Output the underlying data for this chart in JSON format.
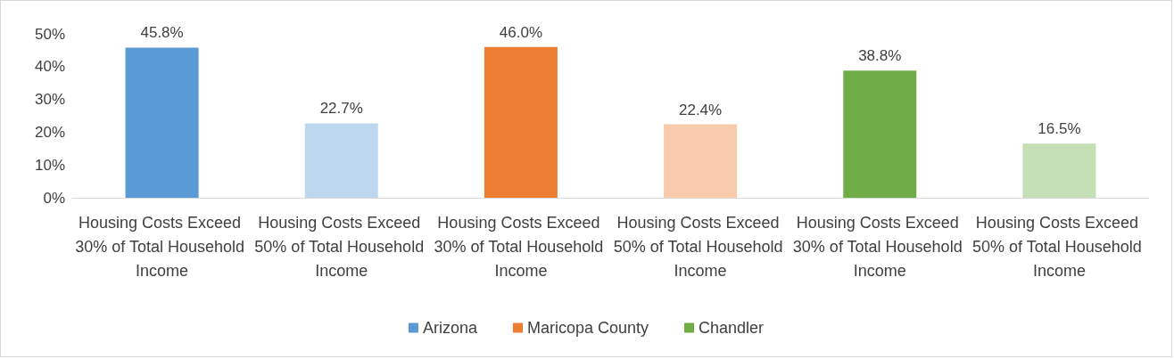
{
  "chart_data": {
    "type": "bar",
    "categories": [
      "Housing Costs Exceed 30% of Total Household Income",
      "Housing Costs Exceed 50% of Total Household Income",
      "Housing Costs Exceed 30% of Total Household Income",
      "Housing Costs Exceed 50% of Total Household Income",
      "Housing Costs Exceed 30% of Total Household Income",
      "Housing Costs Exceed 50% of Total Household Income"
    ],
    "series": [
      {
        "name": "Arizona",
        "color": "#5b9bd5",
        "colors": [
          "#5b9bd5",
          "#bdd7ee",
          null,
          null,
          null,
          null
        ],
        "values": [
          45.8,
          22.7,
          null,
          null,
          null,
          null
        ],
        "value_labels": [
          "45.8%",
          "22.7%",
          null,
          null,
          null,
          null
        ]
      },
      {
        "name": "Maricopa County",
        "color": "#ed7d31",
        "colors": [
          null,
          null,
          "#ed7d31",
          "#f8cbad",
          null,
          null
        ],
        "values": [
          null,
          null,
          46.0,
          22.4,
          null,
          null
        ],
        "value_labels": [
          null,
          null,
          "46.0%",
          "22.4%",
          null,
          null
        ]
      },
      {
        "name": "Chandler",
        "color": "#70ad47",
        "colors": [
          null,
          null,
          null,
          null,
          "#70ad47",
          "#c5e0b4"
        ],
        "values": [
          null,
          null,
          null,
          null,
          38.8,
          16.5
        ],
        "value_labels": [
          null,
          null,
          null,
          null,
          "38.8%",
          "16.5%"
        ]
      }
    ],
    "ylim": [
      0,
      50
    ],
    "yticks": [
      {
        "value": 0,
        "label": "0%"
      },
      {
        "value": 10,
        "label": "10%"
      },
      {
        "value": 20,
        "label": "20%"
      },
      {
        "value": 30,
        "label": "30%"
      },
      {
        "value": 40,
        "label": "40%"
      },
      {
        "value": 50,
        "label": "50%"
      }
    ],
    "grid": false,
    "legend": "bottom"
  }
}
